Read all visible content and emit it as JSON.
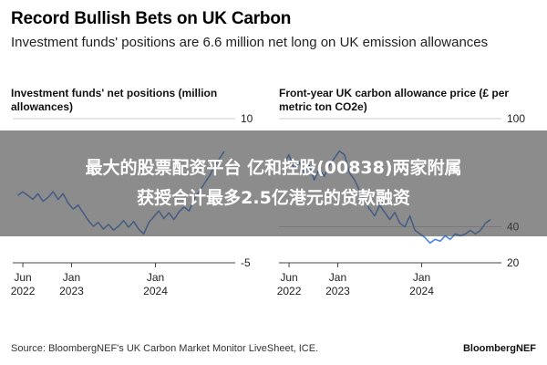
{
  "header": {
    "title": "Record Bullish Bets on UK Carbon",
    "subtitle": "Investment funds' positions are 6.6 million net long on UK emission allowances"
  },
  "footer": {
    "source": "Source: BloombergNEF's UK Carbon Market Monitor LiveSheet, ICE.",
    "brand": "BloombergNEF"
  },
  "banner": {
    "line1": "最大的股票配资平台 亿和控股(00838)两家附属",
    "line2": "获授合计最多2.5亿港元的贷款融资"
  },
  "colors": {
    "series": "#4a86e8",
    "grid": "#cccccc",
    "axis": "#444444"
  },
  "chart_data": [
    {
      "type": "line",
      "title": "Investment funds' net positions (million allowances)",
      "y_axis_side": "right",
      "ylim": [
        -5,
        10
      ],
      "yticks": [
        {
          "value": 10,
          "label": "10"
        },
        {
          "value": -5,
          "label": "-5"
        }
      ],
      "xlim": [
        2022.3,
        2024.95
      ],
      "xticks": [
        {
          "value": 2022.42,
          "line1": "Jun",
          "line2": "2022"
        },
        {
          "value": 2023.0,
          "line1": "Jan",
          "line2": "2023"
        },
        {
          "value": 2024.0,
          "line1": "Jan",
          "line2": "2024"
        }
      ],
      "series": [
        {
          "x": [
            2022.36,
            2022.42,
            2022.48,
            2022.54,
            2022.6,
            2022.66,
            2022.72,
            2022.78,
            2022.84,
            2022.9,
            2022.96,
            2023.02,
            2023.08,
            2023.14,
            2023.2,
            2023.26,
            2023.32,
            2023.38,
            2023.44,
            2023.5,
            2023.56,
            2023.62,
            2023.68,
            2023.74,
            2023.8,
            2023.86,
            2023.92,
            2023.98,
            2024.04,
            2024.1,
            2024.16,
            2024.22,
            2024.28,
            2024.34,
            2024.4,
            2024.46,
            2024.52,
            2024.58,
            2024.64,
            2024.7,
            2024.76,
            2024.82
          ],
          "y": [
            2.0,
            2.4,
            2.0,
            1.6,
            2.2,
            1.4,
            1.8,
            2.4,
            1.6,
            2.2,
            1.2,
            0.6,
            1.0,
            0.2,
            -0.6,
            -1.2,
            -0.8,
            -1.5,
            -1.0,
            -1.6,
            -1.2,
            -0.6,
            -1.3,
            -0.7,
            -1.5,
            -2.0,
            -0.8,
            -0.2,
            0.4,
            -0.4,
            0.2,
            -0.5,
            0.3,
            0.8,
            0.4,
            1.6,
            2.4,
            3.2,
            4.0,
            5.0,
            5.8,
            6.6
          ]
        }
      ]
    },
    {
      "type": "line",
      "title": "Front-year UK carbon allowance price (£ per metric ton CO2e)",
      "y_axis_side": "right",
      "ylim": [
        20,
        100
      ],
      "yticks": [
        {
          "value": 100,
          "label": "100"
        },
        {
          "value": 40,
          "label": "40"
        },
        {
          "value": 20,
          "label": "20"
        }
      ],
      "xlim": [
        2022.3,
        2024.95
      ],
      "xticks": [
        {
          "value": 2022.42,
          "line1": "Jun",
          "line2": "2022"
        },
        {
          "value": 2023.0,
          "line1": "Jan",
          "line2": "2023"
        },
        {
          "value": 2024.0,
          "line1": "Jan",
          "line2": "2024"
        }
      ],
      "series": [
        {
          "x": [
            2022.36,
            2022.42,
            2022.48,
            2022.54,
            2022.6,
            2022.66,
            2022.72,
            2022.78,
            2022.84,
            2022.9,
            2022.96,
            2023.02,
            2023.08,
            2023.14,
            2023.2,
            2023.26,
            2023.32,
            2023.38,
            2023.44,
            2023.5,
            2023.56,
            2023.62,
            2023.68,
            2023.74,
            2023.8,
            2023.86,
            2023.92,
            2023.98,
            2024.04,
            2024.1,
            2024.16,
            2024.22,
            2024.28,
            2024.34,
            2024.4,
            2024.46,
            2024.52,
            2024.58,
            2024.64,
            2024.7,
            2024.76,
            2024.82
          ],
          "y": [
            75,
            80,
            72,
            76,
            70,
            74,
            66,
            72,
            68,
            74,
            78,
            82,
            80,
            70,
            66,
            60,
            54,
            50,
            46,
            52,
            48,
            44,
            48,
            42,
            40,
            46,
            38,
            36,
            34,
            31,
            33,
            32,
            35,
            33,
            36,
            35,
            36,
            38,
            36,
            38,
            42,
            44
          ]
        }
      ]
    }
  ]
}
